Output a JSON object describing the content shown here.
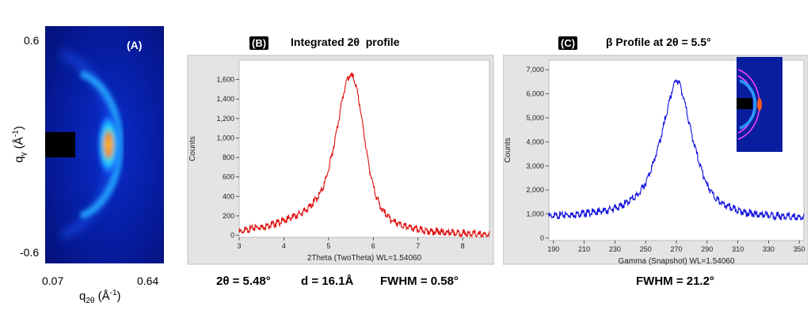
{
  "panel_a": {
    "badge": "(A)",
    "y_top": "0.6",
    "y_bottom": "-0.6",
    "x_left": "0.07",
    "x_right": "0.64",
    "ylabel_main": "q",
    "ylabel_sub": "γ",
    "ylabel_unit": " (Å",
    "ylabel_exp": "-1",
    "ylabel_close": ")",
    "xlabel_main": "q",
    "xlabel_sub": "2θ",
    "xlabel_unit": " (Å",
    "xlabel_exp": "-1",
    "xlabel_close": ")"
  },
  "panel_b": {
    "badge": "(B)",
    "title": "Integrated 2θ  profile",
    "stat_2theta": "2θ = 5.48°",
    "stat_d": "d = 16.1Å",
    "stat_fwhm": "FWHM = 0.58°"
  },
  "panel_c": {
    "badge": "(C)",
    "title": "β Profile at 2θ = 5.5°",
    "stat_fwhm": "FWHM = 21.2°"
  },
  "chart_data": [
    {
      "type": "line",
      "title": "Integrated 2θ  profile",
      "xlabel": "2Theta (TwoTheta) WL=1.54060",
      "ylabel": "Counts",
      "xlim": [
        3,
        8.6
      ],
      "ylim": [
        -20,
        1800
      ],
      "xticks": [
        "3",
        "4",
        "5",
        "6",
        "7",
        "8"
      ],
      "yticks": [
        "0",
        "200",
        "400",
        "600",
        "800",
        "1,000",
        "1,200",
        "1,400",
        "1,600"
      ],
      "color": "#e01010",
      "grid": false,
      "series": [
        {
          "x": [
            3.0,
            3.2,
            3.4,
            3.6,
            3.8,
            4.0,
            4.2,
            4.4,
            4.6,
            4.8,
            4.9,
            5.0,
            5.1,
            5.2,
            5.3,
            5.4,
            5.48,
            5.55,
            5.6,
            5.7,
            5.8,
            5.9,
            6.0,
            6.1,
            6.2,
            6.4,
            6.6,
            6.8,
            7.0,
            7.2,
            7.4,
            7.6,
            7.8,
            8.0,
            8.2,
            8.4,
            8.6
          ],
          "y": [
            30,
            60,
            85,
            95,
            120,
            150,
            190,
            230,
            300,
            420,
            520,
            680,
            880,
            1120,
            1380,
            1580,
            1650,
            1620,
            1560,
            1330,
            1020,
            720,
            500,
            360,
            260,
            160,
            110,
            80,
            60,
            45,
            40,
            30,
            25,
            20,
            15,
            10,
            5
          ]
        }
      ]
    },
    {
      "type": "line",
      "title": "β Profile at 2θ = 5.5°",
      "xlabel": "Gamma (Snapshot) WL=1.54060",
      "ylabel": "Counts",
      "xlim": [
        187,
        353
      ],
      "ylim": [
        -100,
        7400
      ],
      "xticks": [
        "190",
        "210",
        "230",
        "250",
        "270",
        "290",
        "310",
        "330",
        "350"
      ],
      "yticks": [
        "0",
        "1,000",
        "2,000",
        "3,000",
        "4,000",
        "5,000",
        "6,000",
        "7,000"
      ],
      "color": "#1010e0",
      "grid": false,
      "series": [
        {
          "x": [
            187,
            195,
            205,
            215,
            225,
            235,
            245,
            250,
            255,
            260,
            263,
            266,
            268,
            270,
            272,
            274,
            277,
            280,
            285,
            290,
            295,
            300,
            310,
            320,
            330,
            340,
            353
          ],
          "y": [
            900,
            950,
            1000,
            1060,
            1150,
            1350,
            1800,
            2300,
            3100,
            4200,
            5000,
            5800,
            6300,
            6600,
            6450,
            6000,
            5200,
            4300,
            3100,
            2200,
            1700,
            1400,
            1150,
            1000,
            950,
            900,
            850
          ]
        }
      ]
    }
  ]
}
